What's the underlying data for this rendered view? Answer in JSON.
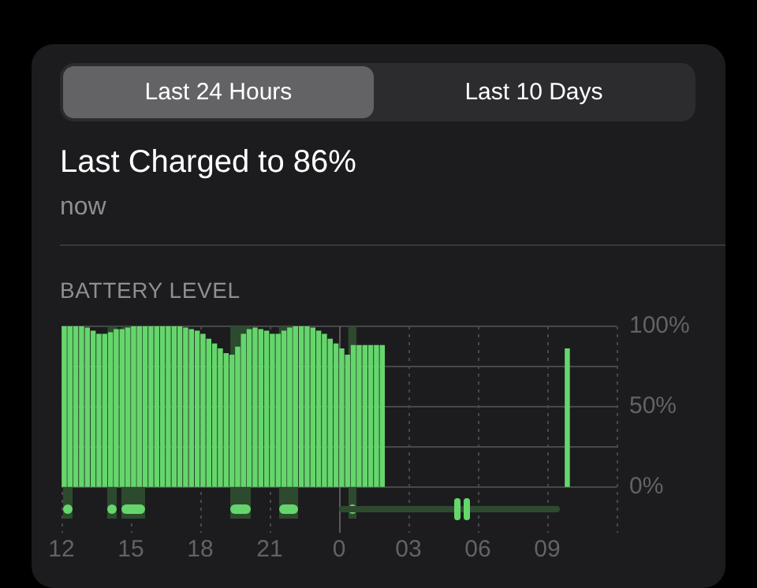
{
  "chart_data": {
    "type": "bar",
    "title": "Last Charged to 86%",
    "subtitle": "now",
    "ylabel": "BATTERY LEVEL",
    "annotations": [
      "Last 24 Hours",
      "Last 10 Days"
    ],
    "x": [
      "--01-01T12:07",
      "--01-01T12:22",
      "--01-01T12:37",
      "--01-01T12:52",
      "--01-01T13:07",
      "--01-01T13:22",
      "--01-01T13:37",
      "--01-01T13:52",
      "--01-01T14:07",
      "--01-01T14:22",
      "--01-01T14:37",
      "--01-01T14:52",
      "--01-01T15:07",
      "--01-01T15:22",
      "--01-01T15:37",
      "--01-01T15:52",
      "--01-01T16:07",
      "--01-01T16:22",
      "--01-01T16:37",
      "--01-01T16:52",
      "--01-01T17:07",
      "--01-01T17:22",
      "--01-01T17:37",
      "--01-01T17:52",
      "--01-01T18:07",
      "--01-01T18:22",
      "--01-01T18:37",
      "--01-01T18:52",
      "--01-01T19:07",
      "--01-01T19:22",
      "--01-01T19:37",
      "--01-01T19:52",
      "--01-01T20:07",
      "--01-01T20:22",
      "--01-01T20:37",
      "--01-01T20:52",
      "--01-01T21:07",
      "--01-01T21:22",
      "--01-01T21:37",
      "--01-01T21:52",
      "--01-01T22:07",
      "--01-01T22:22",
      "--01-01T22:37",
      "--01-01T22:52",
      "--01-01T23:07",
      "--01-01T23:22",
      "--01-01T23:37",
      "--01-01T23:52",
      "--01-02T00:07",
      "--01-02T00:22",
      "--01-02T00:37",
      "--01-02T00:52",
      "--01-02T01:07",
      "--01-02T01:22",
      "--01-02T01:37",
      "--01-02T01:52",
      "--01-02T09:52"
    ],
    "values": [
      100,
      100,
      100,
      100,
      99,
      97,
      95,
      95,
      96,
      98,
      98,
      99,
      100,
      100,
      100,
      100,
      100,
      100,
      100,
      100,
      100,
      99,
      98,
      97,
      95,
      92,
      89,
      86,
      83,
      82,
      87,
      95,
      98,
      99,
      98,
      97,
      95,
      95,
      97,
      99,
      100,
      100,
      100,
      99,
      97,
      95,
      92,
      89,
      86,
      82,
      88,
      88,
      88,
      88,
      88,
      88,
      86
    ],
    "color": "#65d66c",
    "xlim": [
      "--01-01T12:00",
      "--01-02T12:00"
    ],
    "xticks": [
      {
        "value": "--01-01T12:00",
        "label": "12"
      },
      {
        "value": "--01-01T15:00",
        "label": "15"
      },
      {
        "value": "--01-01T18:00",
        "label": "18"
      },
      {
        "value": "--01-01T21:00",
        "label": "21"
      },
      {
        "value": "--01-02T00:00",
        "label": "0"
      },
      {
        "value": "--01-02T03:00",
        "label": "03"
      },
      {
        "value": "--01-02T06:00",
        "label": "06"
      },
      {
        "value": "--01-02T09:00",
        "label": "09"
      }
    ],
    "ylim": [
      0,
      100
    ],
    "yticks": [
      {
        "value": 0,
        "label": "0%"
      },
      {
        "value": 25,
        "label": null
      },
      {
        "value": 50,
        "label": "50%"
      },
      {
        "value": 75,
        "label": null
      },
      {
        "value": 100,
        "label": "100%"
      }
    ],
    "grid": true,
    "ref_lines": [
      {
        "axis": "x",
        "value": "--01-02T00:00",
        "color": "#5a5a5e",
        "line_style": "solid"
      }
    ],
    "bands": [
      {
        "axis": "x",
        "from": "--01-01T12:03",
        "to": "--01-01T12:30",
        "color": "#2d4a2f"
      },
      {
        "axis": "x",
        "from": "--01-01T14:00",
        "to": "--01-01T14:24",
        "color": "#2d4a2f"
      },
      {
        "axis": "x",
        "from": "--01-01T14:36",
        "to": "--01-01T15:36",
        "color": "#2d4a2f"
      },
      {
        "axis": "x",
        "from": "--01-01T19:18",
        "to": "--01-01T20:12",
        "color": "#2d4a2f"
      },
      {
        "axis": "x",
        "from": "--01-01T21:24",
        "to": "--01-01T22:12",
        "color": "#2d4a2f"
      },
      {
        "axis": "x",
        "from": "--01-02T00:24",
        "to": "--01-02T00:45",
        "color": "#2d4a2f"
      }
    ]
  }
}
